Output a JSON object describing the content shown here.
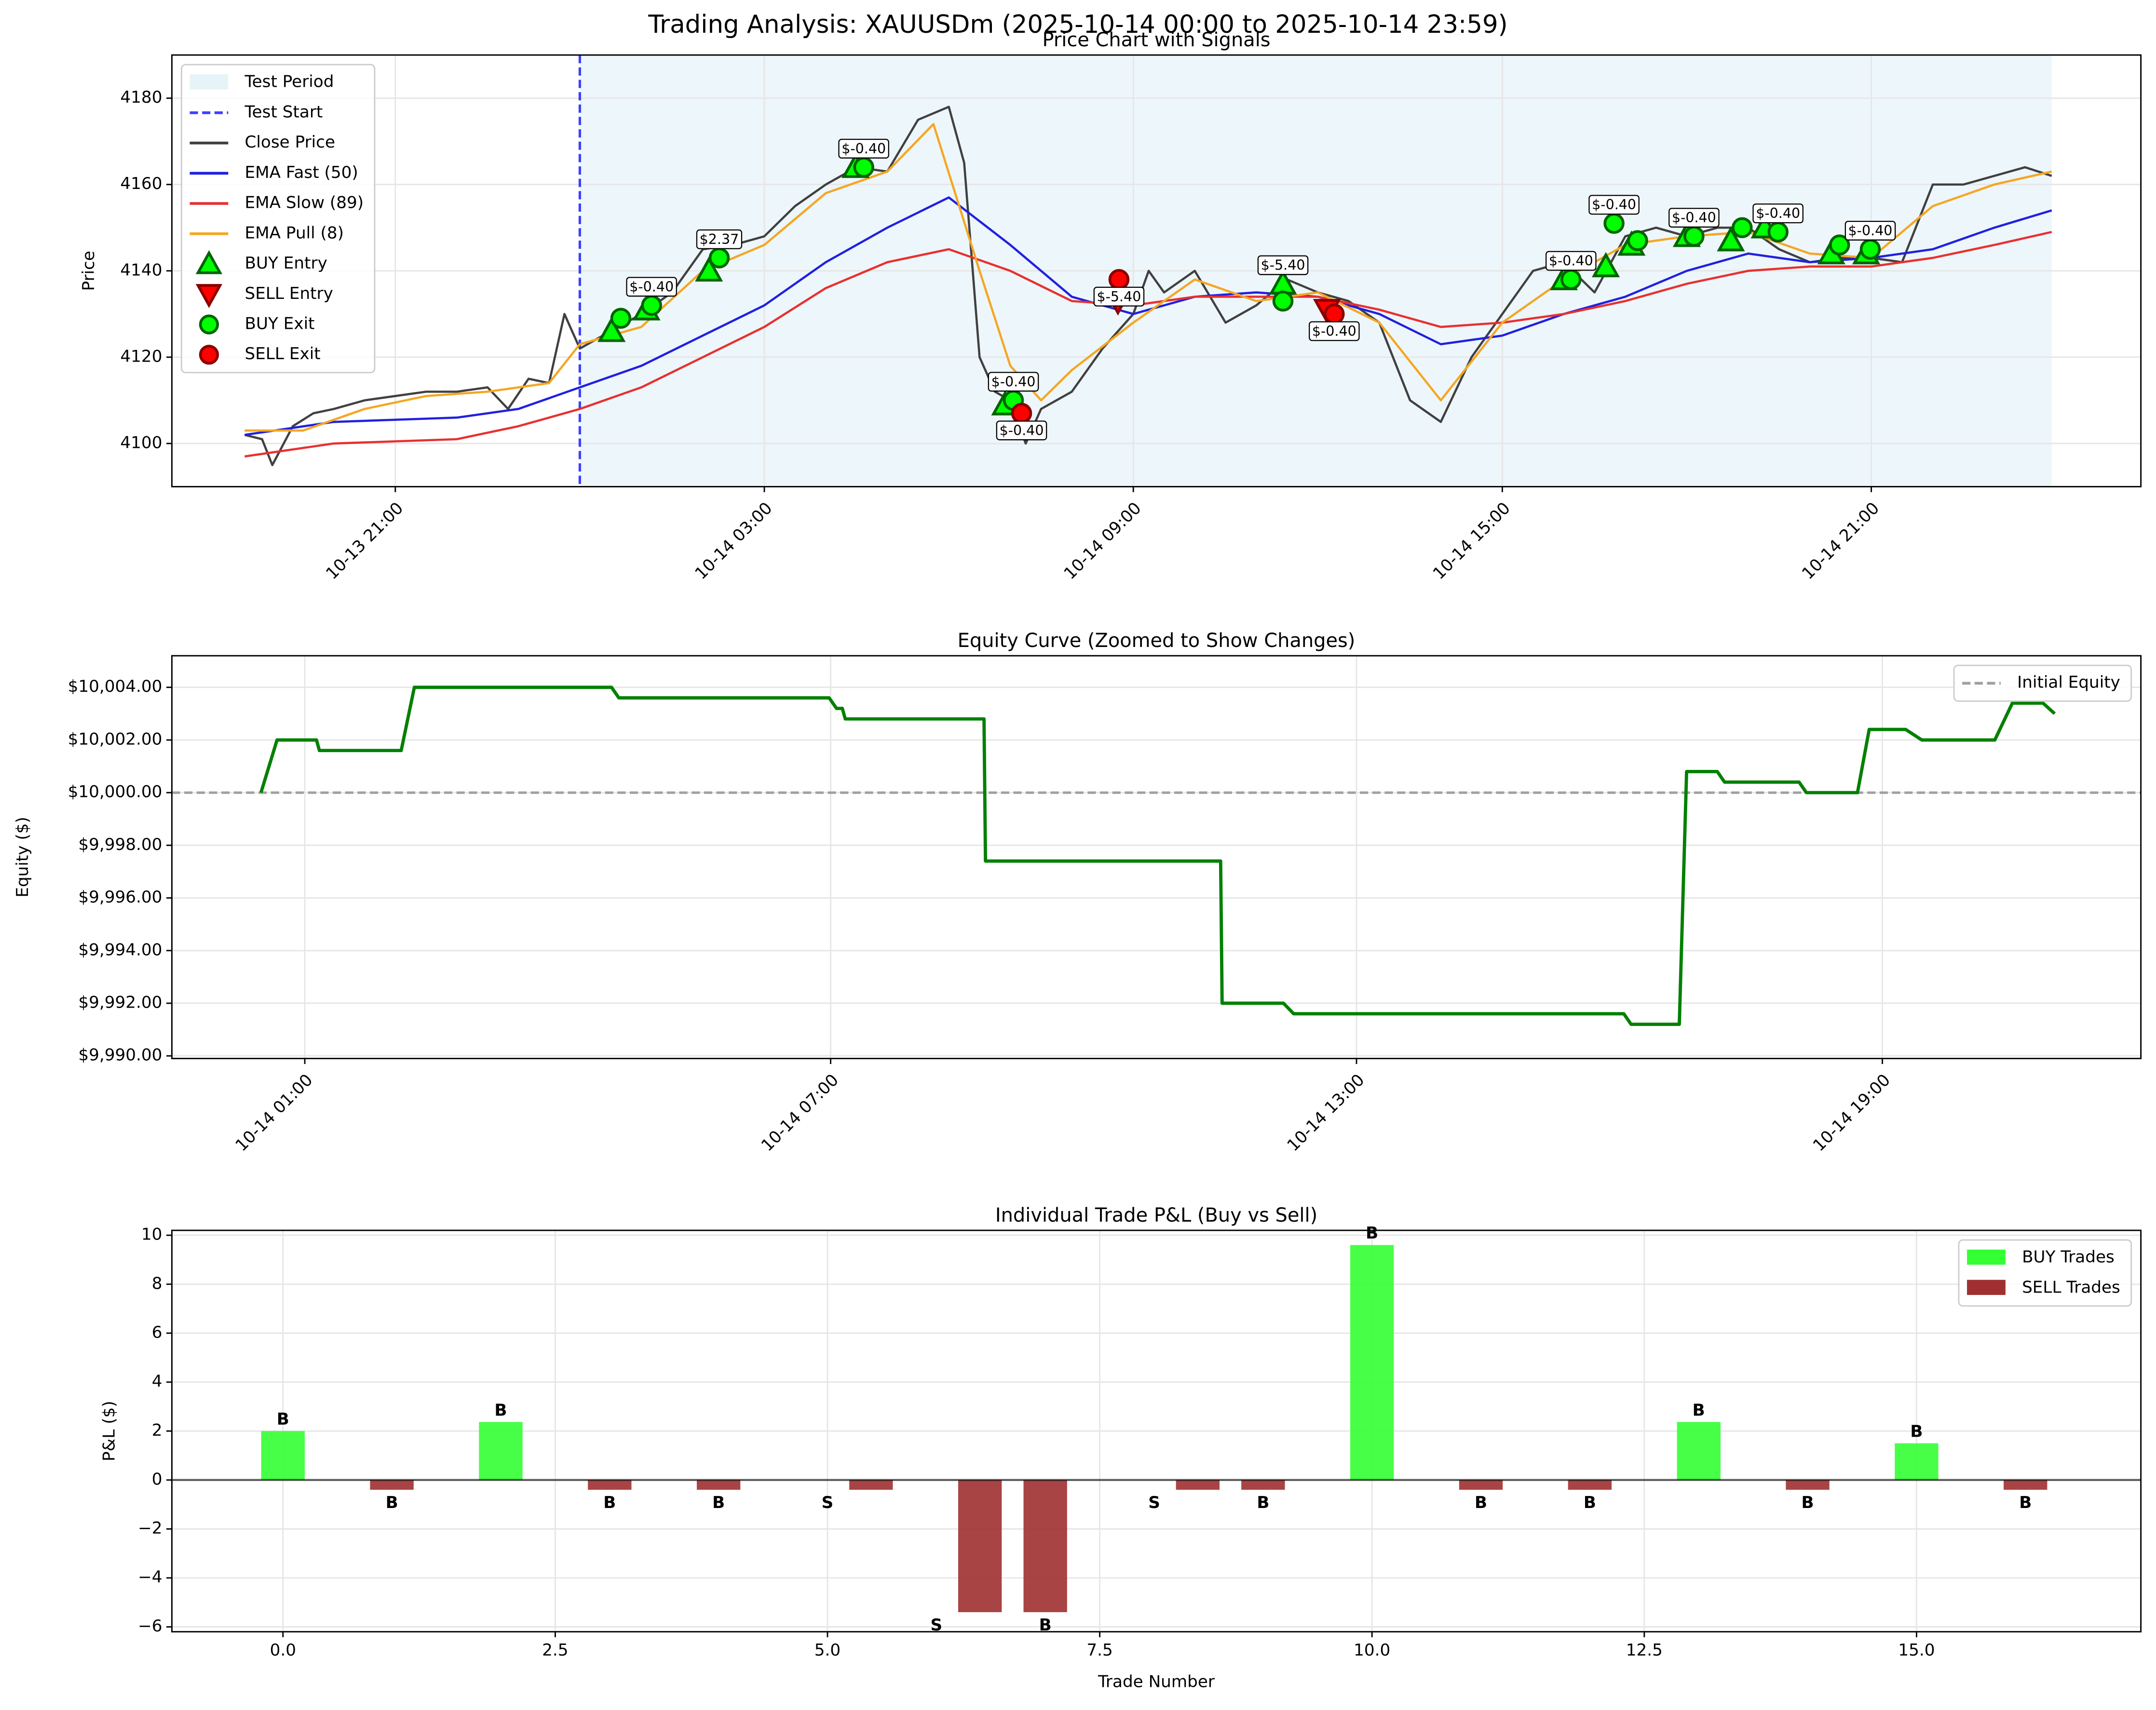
{
  "figure": {
    "title": "Trading Analysis: XAUUSDm (2025-10-14 00:00 to 2025-10-14 23:59)"
  },
  "chart_data": [
    {
      "type": "line",
      "title": "Price Chart with Signals",
      "ylabel": "Price",
      "xlim": [
        "10-13 17:22",
        "10-15 01:23"
      ],
      "xticks": [
        "10-13 21:00",
        "10-14 03:00",
        "10-14 09:00",
        "10-14 15:00",
        "10-14 21:00"
      ],
      "xtick_rotation": 45,
      "ylim": [
        4090,
        4190
      ],
      "yticks": [
        4100,
        4120,
        4140,
        4160,
        4180
      ],
      "grid": true,
      "legend": "upper left",
      "span": {
        "name": "Test Period",
        "color": "#add8e6",
        "x": [
          "10-14 00:00",
          "10-14 23:56"
        ]
      },
      "vline": {
        "name": "Test Start",
        "color": "#0000ff",
        "x": "10-14 00:00"
      },
      "series": [
        {
          "name": "Close Price",
          "color": "#404040",
          "x": [
            "10-13 18:33",
            "10-13 18:50",
            "10-13 19:00",
            "10-13 19:20",
            "10-13 19:40",
            "10-13 20:00",
            "10-13 20:30",
            "10-13 21:00",
            "10-13 21:30",
            "10-13 22:00",
            "10-13 22:30",
            "10-13 22:50",
            "10-13 23:10",
            "10-13 23:30",
            "10-13 23:45",
            "10-14 00:00",
            "10-14 00:30",
            "10-14 01:00",
            "10-14 01:30",
            "10-14 02:00",
            "10-14 02:30",
            "10-14 03:00",
            "10-14 03:30",
            "10-14 04:00",
            "10-14 04:30",
            "10-14 05:00",
            "10-14 05:30",
            "10-14 06:00",
            "10-14 06:15",
            "10-14 06:30",
            "10-14 06:45",
            "10-14 07:00",
            "10-14 07:15",
            "10-14 07:30",
            "10-14 08:00",
            "10-14 08:30",
            "10-14 09:00",
            "10-14 09:15",
            "10-14 09:30",
            "10-14 10:00",
            "10-14 10:30",
            "10-14 11:00",
            "10-14 11:30",
            "10-14 12:00",
            "10-14 12:30",
            "10-14 13:00",
            "10-14 13:30",
            "10-14 14:00",
            "10-14 14:30",
            "10-14 15:00",
            "10-14 15:30",
            "10-14 16:00",
            "10-14 16:30",
            "10-14 17:00",
            "10-14 17:30",
            "10-14 18:00",
            "10-14 18:30",
            "10-14 19:00",
            "10-14 19:30",
            "10-14 20:00",
            "10-14 20:30",
            "10-14 21:00",
            "10-14 21:30",
            "10-14 22:00",
            "10-14 22:30",
            "10-14 23:00",
            "10-14 23:30",
            "10-14 23:56"
          ],
          "values": [
            4102,
            4101,
            4095,
            4104,
            4107,
            4108,
            4110,
            4111,
            4112,
            4112,
            4113,
            4108,
            4115,
            4114,
            4130,
            4122,
            4126,
            4130,
            4135,
            4145,
            4146,
            4148,
            4155,
            4160,
            4164,
            4163,
            4175,
            4178,
            4165,
            4120,
            4112,
            4110,
            4100,
            4108,
            4112,
            4122,
            4130,
            4140,
            4135,
            4140,
            4128,
            4132,
            4138,
            4135,
            4133,
            4128,
            4110,
            4105,
            4120,
            4130,
            4140,
            4142,
            4135,
            4148,
            4150,
            4148,
            4150,
            4150,
            4145,
            4142,
            4143,
            4143,
            4142,
            4160,
            4160,
            4162,
            4164,
            4162
          ]
        },
        {
          "name": "EMA Fast (50)",
          "color": "#2020e0",
          "x": [
            "10-13 18:33",
            "10-13 20:00",
            "10-13 22:00",
            "10-13 23:00",
            "10-14 00:00",
            "10-14 01:00",
            "10-14 02:00",
            "10-14 03:00",
            "10-14 04:00",
            "10-14 05:00",
            "10-14 06:00",
            "10-14 07:00",
            "10-14 08:00",
            "10-14 09:00",
            "10-14 10:00",
            "10-14 11:00",
            "10-14 12:00",
            "10-14 13:00",
            "10-14 14:00",
            "10-14 15:00",
            "10-14 16:00",
            "10-14 17:00",
            "10-14 18:00",
            "10-14 19:00",
            "10-14 20:00",
            "10-14 21:00",
            "10-14 22:00",
            "10-14 23:00",
            "10-14 23:56"
          ],
          "values": [
            4102,
            4105,
            4106,
            4108,
            4113,
            4118,
            4125,
            4132,
            4142,
            4150,
            4157,
            4146,
            4134,
            4130,
            4134,
            4135,
            4134,
            4130,
            4123,
            4125,
            4130,
            4134,
            4140,
            4144,
            4142,
            4143,
            4145,
            4150,
            4154
          ]
        },
        {
          "name": "EMA Slow (89)",
          "color": "#e83030",
          "x": [
            "10-13 18:33",
            "10-13 20:00",
            "10-13 22:00",
            "10-13 23:00",
            "10-14 00:00",
            "10-14 01:00",
            "10-14 02:00",
            "10-14 03:00",
            "10-14 04:00",
            "10-14 05:00",
            "10-14 06:00",
            "10-14 07:00",
            "10-14 08:00",
            "10-14 09:00",
            "10-14 10:00",
            "10-14 11:00",
            "10-14 12:00",
            "10-14 13:00",
            "10-14 14:00",
            "10-14 15:00",
            "10-14 16:00",
            "10-14 17:00",
            "10-14 18:00",
            "10-14 19:00",
            "10-14 20:00",
            "10-14 21:00",
            "10-14 22:00",
            "10-14 23:00",
            "10-14 23:56"
          ],
          "values": [
            4097,
            4100,
            4101,
            4104,
            4108,
            4113,
            4120,
            4127,
            4136,
            4142,
            4145,
            4140,
            4133,
            4132,
            4134,
            4134,
            4134,
            4131,
            4127,
            4128,
            4130,
            4133,
            4137,
            4140,
            4141,
            4141,
            4143,
            4146,
            4149
          ]
        },
        {
          "name": "EMA Pull (8)",
          "color": "#f5a623",
          "x": [
            "10-13 18:33",
            "10-13 19:30",
            "10-13 20:30",
            "10-13 21:30",
            "10-13 22:30",
            "10-13 23:30",
            "10-14 00:00",
            "10-14 01:00",
            "10-14 02:00",
            "10-14 03:00",
            "10-14 04:00",
            "10-14 05:00",
            "10-14 05:45",
            "10-14 06:30",
            "10-14 07:00",
            "10-14 07:30",
            "10-14 08:00",
            "10-14 09:00",
            "10-14 10:00",
            "10-14 11:00",
            "10-14 12:00",
            "10-14 13:00",
            "10-14 14:00",
            "10-14 15:00",
            "10-14 16:00",
            "10-14 17:00",
            "10-14 18:00",
            "10-14 19:00",
            "10-14 20:00",
            "10-14 21:00",
            "10-14 22:00",
            "10-14 23:00",
            "10-14 23:56"
          ],
          "values": [
            4103,
            4103,
            4108,
            4111,
            4112,
            4114,
            4123,
            4127,
            4140,
            4146,
            4158,
            4163,
            4174,
            4140,
            4118,
            4110,
            4117,
            4128,
            4138,
            4133,
            4135,
            4128,
            4110,
            4128,
            4138,
            4146,
            4148,
            4149,
            4144,
            4143,
            4155,
            4160,
            4163
          ]
        }
      ],
      "markers": [
        {
          "name": "BUY Entry",
          "shape": "triangle-up",
          "color": "#00ff00",
          "edgecolor": "#006400",
          "x": [
            "10-14 00:31",
            "10-14 01:05",
            "10-14 02:06",
            "10-14 04:29",
            "10-14 06:55",
            "10-14 11:26",
            "10-14 16:00",
            "10-14 16:41",
            "10-14 17:06",
            "10-14 18:00",
            "10-14 18:43",
            "10-14 19:16",
            "10-14 20:21",
            "10-14 20:55"
          ],
          "values": [
            4126,
            4131,
            4140,
            4164,
            4109,
            4137,
            4138,
            4141,
            4146,
            4148,
            4147,
            4150,
            4144,
            4144
          ]
        },
        {
          "name": "SELL Entry",
          "shape": "triangle-down",
          "color": "#ff0000",
          "edgecolor": "#8b0000",
          "x": [
            "10-14 08:45",
            "10-14 12:09"
          ],
          "values": [
            4133,
            4131
          ]
        },
        {
          "name": "BUY Exit",
          "shape": "circle",
          "color": "#00ff00",
          "edgecolor": "#006400",
          "x": [
            "10-14 00:40",
            "10-14 01:10",
            "10-14 02:16",
            "10-14 04:37",
            "10-14 07:03",
            "10-14 11:26",
            "10-14 16:07",
            "10-14 16:49",
            "10-14 17:12",
            "10-14 18:07",
            "10-14 18:54",
            "10-14 19:29",
            "10-14 20:29",
            "10-14 20:59"
          ],
          "values": [
            4129,
            4132,
            4143,
            4164,
            4110,
            4133,
            4138,
            4151,
            4147,
            4148,
            4150,
            4149,
            4146,
            4145
          ]
        },
        {
          "name": "SELL Exit",
          "shape": "circle",
          "color": "#ff0000",
          "edgecolor": "#8b0000",
          "x": [
            "10-14 07:11",
            "10-14 08:46",
            "10-14 12:16"
          ],
          "values": [
            4107,
            4138,
            4130
          ]
        }
      ],
      "annotations": [
        {
          "text": "$-0.40",
          "x": "10-14 01:10",
          "y": 4132
        },
        {
          "text": "$2.37",
          "x": "10-14 02:16",
          "y": 4143
        },
        {
          "text": "$-0.40",
          "x": "10-14 04:37",
          "y": 4164
        },
        {
          "text": "$-0.40",
          "x": "10-14 07:03",
          "y": 4110
        },
        {
          "text": "$-0.40",
          "x": "10-14 07:11",
          "y": 4107,
          "below": true
        },
        {
          "text": "$-5.40",
          "x": "10-14 08:46",
          "y": 4138,
          "below": true
        },
        {
          "text": "$-5.40",
          "x": "10-14 11:26",
          "y": 4137
        },
        {
          "text": "$-0.40",
          "x": "10-14 12:16",
          "y": 4130,
          "below": true
        },
        {
          "text": "$-0.40",
          "x": "10-14 16:07",
          "y": 4138
        },
        {
          "text": "$-0.40",
          "x": "10-14 16:49",
          "y": 4151
        },
        {
          "text": "$-0.40",
          "x": "10-14 18:07",
          "y": 4148
        },
        {
          "text": "$-0.40",
          "x": "10-14 19:29",
          "y": 4149
        },
        {
          "text": "$-0.40",
          "x": "10-14 20:59",
          "y": 4145
        }
      ]
    },
    {
      "type": "line",
      "title": "Equity Curve (Zoomed to Show Changes)",
      "ylabel": "Equity ($)",
      "xlim": [
        "10-13 23:29",
        "10-14 21:57"
      ],
      "xticks": [
        "10-14 01:00",
        "10-14 07:00",
        "10-14 13:00",
        "10-14 19:00"
      ],
      "xtick_rotation": 45,
      "ylim": [
        9989.9,
        10005.2
      ],
      "yticks": [
        {
          "value": 9990,
          "label": "$9,990.00"
        },
        {
          "value": 9992,
          "label": "$9,992.00"
        },
        {
          "value": 9994,
          "label": "$9,994.00"
        },
        {
          "value": 9996,
          "label": "$9,996.00"
        },
        {
          "value": 9998,
          "label": "$9,998.00"
        },
        {
          "value": 10000,
          "label": "$10,000.00"
        },
        {
          "value": 10002,
          "label": "$10,002.00"
        },
        {
          "value": 10004,
          "label": "$10,004.00"
        }
      ],
      "grid": true,
      "legend": "upper right",
      "hline": {
        "name": "Initial Equity",
        "value": 10000,
        "color": "#a0a0a0"
      },
      "series": [
        {
          "color": "#008000",
          "x": [
            "10-14 00:30",
            "10-14 00:41",
            "10-14 01:08",
            "10-14 01:10",
            "10-14 02:06",
            "10-14 02:15",
            "10-14 04:30",
            "10-14 04:35",
            "10-14 06:59",
            "10-14 07:04",
            "10-14 07:08",
            "10-14 07:10",
            "10-14 08:45",
            "10-14 08:46",
            "10-14 11:27",
            "10-14 11:28",
            "10-14 12:10",
            "10-14 12:17",
            "10-14 16:03",
            "10-14 16:08",
            "10-14 16:41",
            "10-14 16:46",
            "10-14 17:07",
            "10-14 17:12",
            "10-14 18:03",
            "10-14 18:08",
            "10-14 18:43",
            "10-14 18:51",
            "10-14 19:16",
            "10-14 19:27",
            "10-14 20:17",
            "10-14 20:29",
            "10-14 20:50",
            "10-14 20:58"
          ],
          "values": [
            10000,
            10002,
            10002,
            10001.6,
            10001.6,
            10004,
            10004,
            10003.6,
            10003.6,
            10003.2,
            10003.2,
            10002.8,
            10002.8,
            9997.4,
            9997.4,
            9992,
            9992,
            9991.6,
            9991.6,
            9991.2,
            9991.2,
            10000.8,
            10000.8,
            10000.4,
            10000.4,
            10000,
            10000,
            10002.4,
            10002.4,
            10002,
            10002,
            10003.4,
            10003.4,
            10003
          ]
        }
      ]
    },
    {
      "type": "bar",
      "title": "Individual Trade P&L (Buy vs Sell)",
      "xlabel": "Trade Number",
      "ylabel": "P&L ($)",
      "xlim": [
        -1.02,
        17.06
      ],
      "xticks": [
        {
          "value": 0,
          "label": "0.0"
        },
        {
          "value": 2.5,
          "label": "2.5"
        },
        {
          "value": 5,
          "label": "5.0"
        },
        {
          "value": 7.5,
          "label": "7.5"
        },
        {
          "value": 10,
          "label": "10.0"
        },
        {
          "value": 12.5,
          "label": "12.5"
        },
        {
          "value": 15,
          "label": "15.0"
        }
      ],
      "ylim": [
        -6.2,
        10.2
      ],
      "yticks": [
        {
          "value": -6,
          "label": "−6"
        },
        {
          "value": -4,
          "label": "−4"
        },
        {
          "value": -2,
          "label": "−2"
        },
        0,
        2,
        4,
        6,
        8,
        10
      ],
      "grid": true,
      "legend": "upper right",
      "bar_width": 0.4,
      "series": [
        {
          "name": "BUY Trades",
          "color": "#33ff33",
          "x": [
            0,
            2,
            10,
            13,
            15
          ],
          "values": [
            2,
            2.37,
            9.6,
            2.37,
            1.5
          ],
          "tags": [
            "B",
            "B",
            "B",
            "B",
            "B"
          ],
          "tag_x": [
            0,
            2,
            10,
            13,
            15
          ]
        },
        {
          "name": "SELL Trades",
          "color": "#a03030",
          "x": [
            1,
            3,
            4,
            5.4,
            6.4,
            7,
            8.4,
            9,
            11,
            12,
            14,
            16
          ],
          "values": [
            -0.4,
            -0.4,
            -0.4,
            -0.4,
            -5.4,
            -5.4,
            -0.4,
            -0.4,
            -0.4,
            -0.4,
            -0.4,
            -0.4
          ],
          "tags": [
            "B",
            "B",
            "B",
            "S",
            "S",
            "B",
            "S",
            "B",
            "B",
            "B",
            "B",
            "B"
          ],
          "tag_x": [
            1,
            3,
            4,
            5,
            6,
            7,
            8,
            9,
            11,
            12,
            14,
            16
          ]
        }
      ]
    }
  ]
}
